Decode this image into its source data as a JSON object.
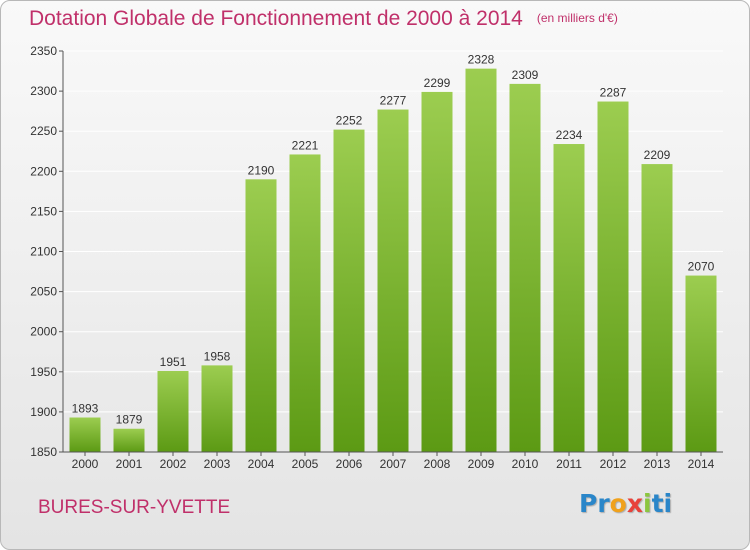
{
  "chart_data": {
    "type": "bar",
    "title": "Dotation Globale de Fonctionnement de 2000 à 2014",
    "unit_label": "(en milliers d'€)",
    "categories": [
      "2000",
      "2001",
      "2002",
      "2003",
      "2004",
      "2005",
      "2006",
      "2007",
      "2008",
      "2009",
      "2010",
      "2011",
      "2012",
      "2013",
      "2014"
    ],
    "values": [
      1893,
      1879,
      1951,
      1958,
      2190,
      2221,
      2252,
      2277,
      2299,
      2328,
      2309,
      2234,
      2287,
      2209,
      2070
    ],
    "ylim": [
      1850,
      2350
    ],
    "yticks": [
      1850,
      1900,
      1950,
      2000,
      2050,
      2100,
      2150,
      2200,
      2250,
      2300,
      2350
    ],
    "grid": true,
    "bar_color_top": "#9ccd50",
    "bar_color_bottom": "#5c9a14"
  },
  "footer": {
    "place_name": "BURES-SUR-YVETTE",
    "logo_letters": [
      "P",
      "r",
      "o",
      "x",
      "i",
      "ti"
    ]
  }
}
